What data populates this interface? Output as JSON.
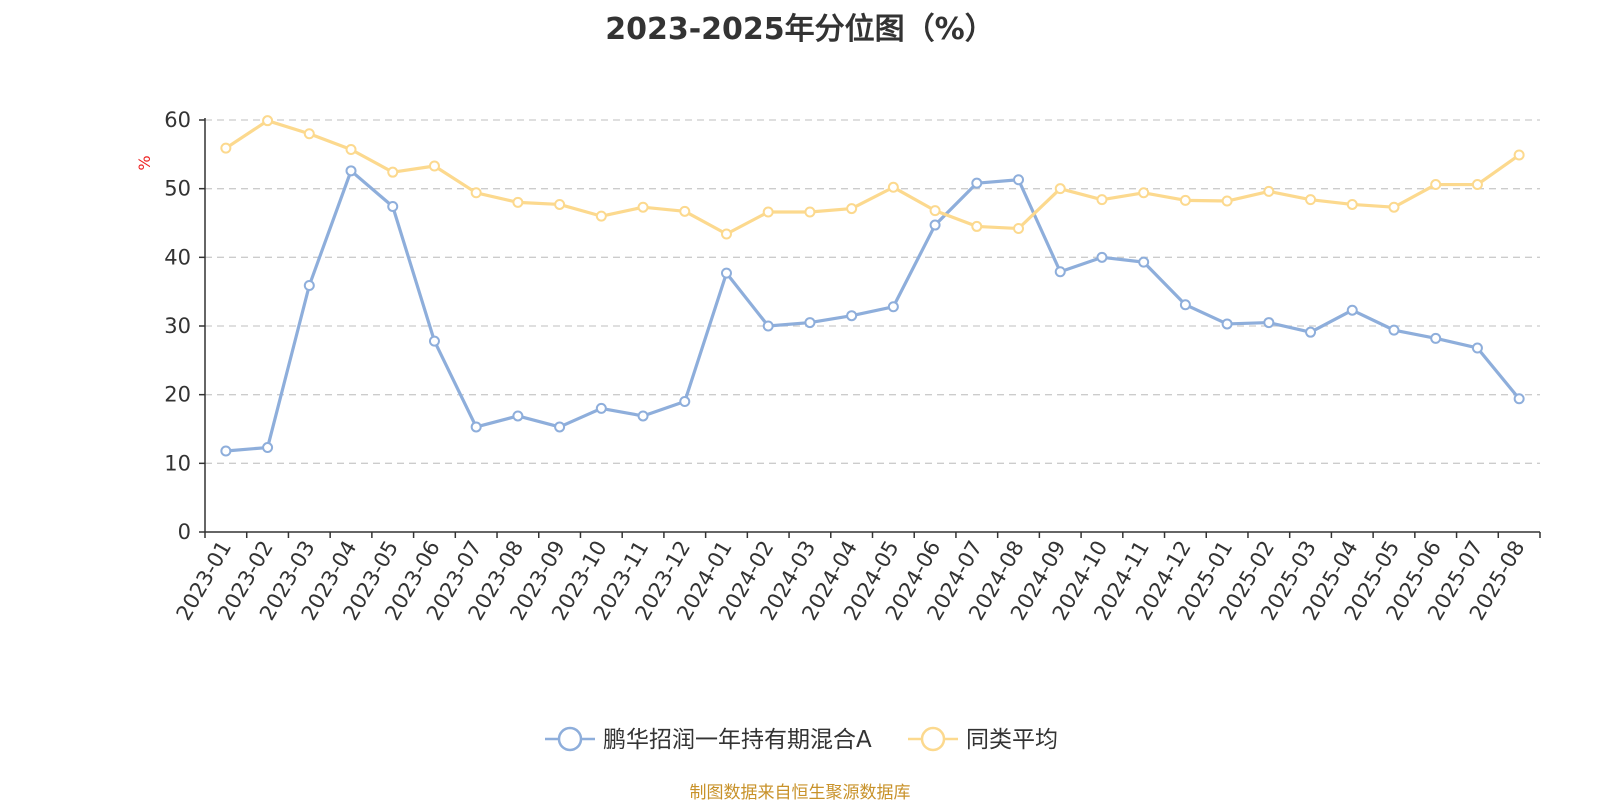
{
  "chart_data": {
    "type": "line",
    "title": "2023-2025年分位图（%）",
    "ylabel": "%",
    "xlabel": "",
    "ylim": [
      0,
      60
    ],
    "yticks": [
      0,
      10,
      20,
      30,
      40,
      50,
      60
    ],
    "grid": true,
    "legend_position": "bottom",
    "categories": [
      "2023-01",
      "2023-02",
      "2023-03",
      "2023-04",
      "2023-05",
      "2023-06",
      "2023-07",
      "2023-08",
      "2023-09",
      "2023-10",
      "2023-11",
      "2023-12",
      "2024-01",
      "2024-02",
      "2024-03",
      "2024-04",
      "2024-05",
      "2024-06",
      "2024-07",
      "2024-08",
      "2024-09",
      "2024-10",
      "2024-11",
      "2024-12",
      "2025-01",
      "2025-02",
      "2025-03",
      "2025-04",
      "2025-05",
      "2025-06",
      "2025-07",
      "2025-08"
    ],
    "series": [
      {
        "name": "鹏华招润一年持有期混合A",
        "color": "#8eaedb",
        "values": [
          11.8,
          12.3,
          35.9,
          52.6,
          47.4,
          27.8,
          15.3,
          16.9,
          15.3,
          18.0,
          16.9,
          19.0,
          37.7,
          30.0,
          30.5,
          31.5,
          32.8,
          44.7,
          50.8,
          51.3,
          37.9,
          40.0,
          39.3,
          33.1,
          30.3,
          30.5,
          29.1,
          32.3,
          29.4,
          28.2,
          26.8,
          19.4
        ]
      },
      {
        "name": "同类平均",
        "color": "#fcd98e",
        "values": [
          55.9,
          59.9,
          58.0,
          55.7,
          52.4,
          53.3,
          49.4,
          48.0,
          47.7,
          46.0,
          47.3,
          46.7,
          43.4,
          46.6,
          46.6,
          47.1,
          50.2,
          46.8,
          44.5,
          44.2,
          50.0,
          48.4,
          49.4,
          48.3,
          48.2,
          49.6,
          48.4,
          47.7,
          47.3,
          50.6,
          50.6,
          54.9
        ]
      }
    ],
    "source_note": "制图数据来自恒生聚源数据库"
  }
}
